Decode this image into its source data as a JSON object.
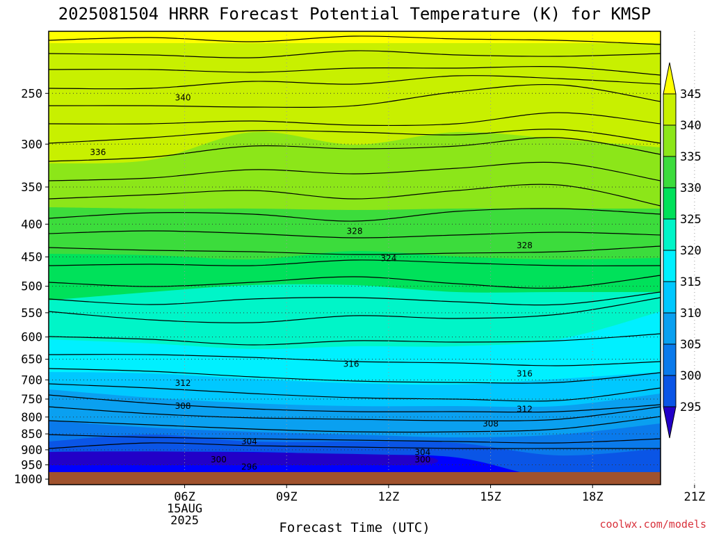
{
  "title": "2025081504 HRRR Forecast Potential Temperature (K) for KMSP",
  "credit": "coolwx.com/models",
  "chart_data": {
    "type": "contour-cross-section",
    "title": "2025081504 HRRR Forecast Potential Temperature (K) for KMSP",
    "xlabel": "Forecast Time (UTC)",
    "ylabel": "",
    "x_ticks": [
      {
        "hour": 6,
        "label": "06Z",
        "sub1": "15AUG",
        "sub2": "2025"
      },
      {
        "hour": 9,
        "label": "09Z",
        "sub1": "",
        "sub2": ""
      },
      {
        "hour": 12,
        "label": "12Z",
        "sub1": "",
        "sub2": ""
      },
      {
        "hour": 15,
        "label": "15Z",
        "sub1": "",
        "sub2": ""
      },
      {
        "hour": 18,
        "label": "18Z",
        "sub1": "",
        "sub2": ""
      },
      {
        "hour": 21,
        "label": "21Z",
        "sub1": "",
        "sub2": ""
      }
    ],
    "xlim": [
      2.0,
      20.0
    ],
    "y_ticks": [
      250,
      300,
      350,
      400,
      450,
      500,
      550,
      600,
      650,
      700,
      750,
      800,
      850,
      900,
      950,
      1000
    ],
    "y_scale": "log pressure (hPa), inverted",
    "ylim": [
      200,
      1020
    ],
    "ground_pressure_hPa": 975,
    "grid": true,
    "colorbar": {
      "levels": [
        295,
        300,
        305,
        310,
        315,
        320,
        325,
        330,
        335,
        340,
        345
      ],
      "labels": [
        "295",
        "300",
        "305",
        "310",
        "315",
        "320",
        "325",
        "330",
        "335",
        "340",
        "345"
      ],
      "colors": [
        "#2200c8",
        "#0000ff",
        "#0a55e6",
        "#0a7aeb",
        "#0aa0f0",
        "#00c8ff",
        "#00f0ff",
        "#00f5c8",
        "#00e15a",
        "#3cdc3c",
        "#8ce619",
        "#c8f000",
        "#ffff00"
      ]
    },
    "contour_labels": [
      {
        "value": "340",
        "hour": 5.95,
        "p": 254
      },
      {
        "value": "336",
        "hour": 3.45,
        "p": 309
      },
      {
        "value": "328",
        "hour": 11.0,
        "p": 410
      },
      {
        "value": "328",
        "hour": 16.0,
        "p": 432
      },
      {
        "value": "324",
        "hour": 12.0,
        "p": 452
      },
      {
        "value": "316",
        "hour": 10.9,
        "p": 661
      },
      {
        "value": "316",
        "hour": 16.0,
        "p": 685
      },
      {
        "value": "312",
        "hour": 5.95,
        "p": 708
      },
      {
        "value": "312",
        "hour": 16.0,
        "p": 778
      },
      {
        "value": "308",
        "hour": 5.95,
        "p": 769
      },
      {
        "value": "308",
        "hour": 15.0,
        "p": 820
      },
      {
        "value": "304",
        "hour": 7.9,
        "p": 874
      },
      {
        "value": "304",
        "hour": 13.0,
        "p": 908
      },
      {
        "value": "300",
        "hour": 7.0,
        "p": 932
      },
      {
        "value": "300",
        "hour": 13.0,
        "p": 932
      },
      {
        "value": "296",
        "hour": 7.9,
        "p": 957
      }
    ]
  }
}
